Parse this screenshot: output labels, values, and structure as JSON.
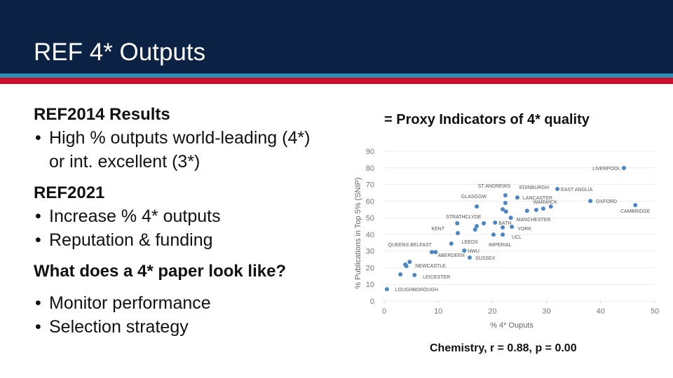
{
  "slide": {
    "title": "REF 4* Outputs",
    "sections": [
      {
        "heading": "REF2014 Results",
        "bullets": [
          "High % outputs world-leading (4*) or int. excellent (3*)"
        ]
      },
      {
        "heading": "REF2021",
        "bullets": [
          "Increase % 4* outputs",
          "Reputation & funding"
        ]
      },
      {
        "heading": "What does a 4* paper look like?",
        "bullets": [
          "Monitor performance",
          "Selection strategy"
        ]
      }
    ]
  },
  "chart_data": {
    "type": "scatter",
    "title": "= Proxy Indicators of 4* quality",
    "caption": "Chemistry, r = 0.88, p = 0.00",
    "x_label": "% 4* Ouputs",
    "y_label": "% Publications in Top 5% (SNIP)",
    "x": [
      44.3,
      46.4,
      38.1,
      32.0,
      30.8,
      22.4,
      22.4,
      24.6,
      17.1,
      13.5,
      20.5,
      23.4,
      23.6,
      13.6,
      21.9,
      20.2,
      12.4,
      14.8,
      15.8,
      9.5,
      8.8,
      4.7,
      5.6,
      0.5,
      22.5,
      26.4,
      28.1,
      29.4,
      17.1,
      16.8,
      18.4,
      21.9,
      4.1,
      3.9,
      3.0,
      21.9
    ],
    "y": [
      79.9,
      57.6,
      60.1,
      67.3,
      56.8,
      58.9,
      63.5,
      62.2,
      56.8,
      46.7,
      47.1,
      50.0,
      44.6,
      40.8,
      39.9,
      39.9,
      34.5,
      30.3,
      26.1,
      29.4,
      29.4,
      23.5,
      15.6,
      7.1,
      53.8,
      54.2,
      54.7,
      55.5,
      45.0,
      42.9,
      46.7,
      44.2,
      21.0,
      21.9,
      16.0,
      55.1
    ],
    "point_labels": [
      "LIVERPOOL",
      "CAMBRIDGE",
      "OXFORD",
      "EAST ANGLIA",
      "WARWICK",
      "ST ANDREWS",
      "EDINBURGH",
      "LANCASTER",
      "GLASGOW",
      "STRATHCLYDE",
      "BATH",
      "MANCHESTER",
      "YORK",
      "KENT",
      "UCL",
      "IMPERIAL",
      "LEEDS",
      "HWU",
      "SUSSEX",
      "ABERDEEN",
      "QUEENS BELFAST",
      "NEWCASTLE",
      "LEICESTER",
      "LOUGHBOROUGH",
      null,
      null,
      null,
      null,
      null,
      null,
      null,
      null,
      null,
      null,
      null,
      null
    ],
    "color": "#4a86c5",
    "xlim": [
      0,
      50
    ],
    "xticks": [
      0,
      10,
      20,
      30,
      40,
      50
    ],
    "ylim": [
      0,
      90
    ],
    "yticks": [
      0,
      10,
      20,
      30,
      40,
      50,
      60,
      70,
      80,
      90
    ],
    "grid": true
  }
}
